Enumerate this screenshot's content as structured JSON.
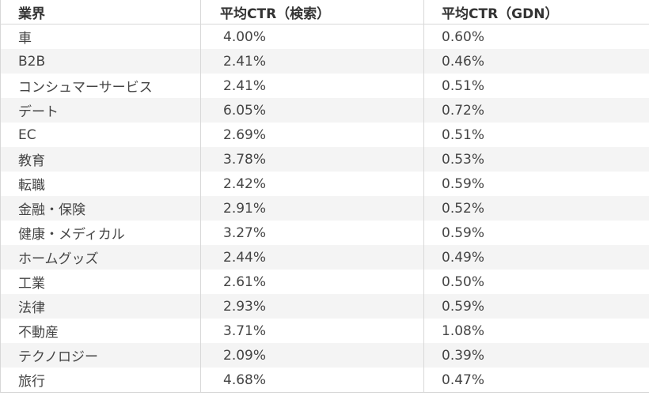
{
  "table": {
    "header": [
      "業界",
      "平均CTR（検索）",
      "平均CTR（GDN）"
    ],
    "rows": [
      [
        "車",
        "4.00%",
        "0.60%"
      ],
      [
        "B2B",
        "2.41%",
        "0.46%"
      ],
      [
        "コンシュマーサービス",
        "2.41%",
        "0.51%"
      ],
      [
        "デート",
        "6.05%",
        "0.72%"
      ],
      [
        "EC",
        "2.69%",
        "0.51%"
      ],
      [
        "教育",
        "3.78%",
        "0.53%"
      ],
      [
        "転職",
        "2.42%",
        "0.59%"
      ],
      [
        "金融・保険",
        "2.91%",
        "0.52%"
      ],
      [
        "健康・メディカル",
        "3.27%",
        "0.59%"
      ],
      [
        "ホームグッズ",
        "2.44%",
        "0.49%"
      ],
      [
        "工業",
        "2.61%",
        "0.50%"
      ],
      [
        "法律",
        "2.93%",
        "0.59%"
      ],
      [
        "不動産",
        "3.71%",
        "1.08%"
      ],
      [
        "テクノロジー",
        "2.09%",
        "0.39%"
      ],
      [
        "旅行",
        "4.68%",
        "0.47%"
      ]
    ]
  }
}
